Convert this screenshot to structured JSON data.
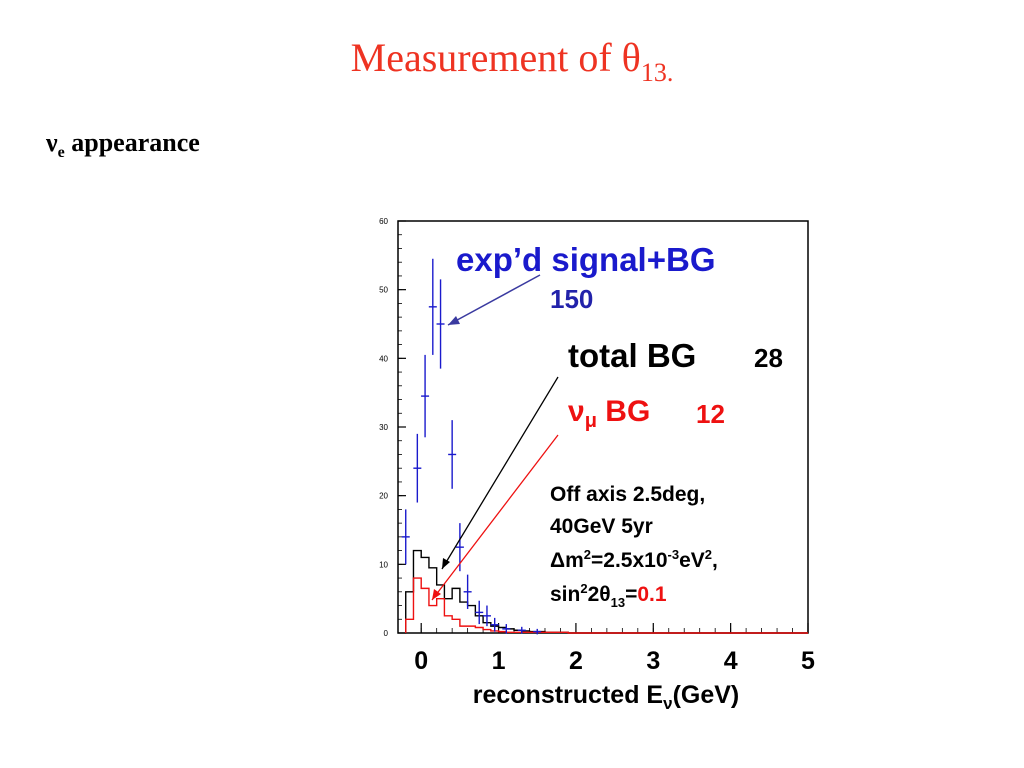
{
  "slide": {
    "title_main": "Measurement of θ",
    "title_sub": "13.",
    "subtitle_symbol": "ν",
    "subtitle_sub": "e",
    "subtitle_rest": " appearance"
  },
  "colors": {
    "title": "#ee3322",
    "signal": "#1a1acc",
    "total_bg": "#000000",
    "numu_bg": "#ee1111",
    "annotation_blue": "#2222aa"
  },
  "chart_data": {
    "type": "histogram",
    "xlabel": "reconstructed E",
    "xlabel_sub": "ν",
    "xlabel_tail": "(GeV)",
    "xlim": [
      -0.3,
      5
    ],
    "ylim": [
      0,
      60
    ],
    "xticks": [
      0,
      1,
      2,
      3,
      4,
      5
    ],
    "yticks": [
      0,
      10,
      20,
      30,
      40,
      50,
      60
    ],
    "signal_plus_bg": {
      "label": "exp’d signal+BG",
      "count": "150",
      "points": [
        {
          "x": -0.2,
          "y": 14,
          "err": 4
        },
        {
          "x": -0.05,
          "y": 24,
          "err": 5
        },
        {
          "x": 0.05,
          "y": 34.5,
          "err": 6
        },
        {
          "x": 0.15,
          "y": 47.5,
          "err": 7
        },
        {
          "x": 0.25,
          "y": 45,
          "err": 6.5
        },
        {
          "x": 0.4,
          "y": 26,
          "err": 5
        },
        {
          "x": 0.5,
          "y": 12.5,
          "err": 3.5
        },
        {
          "x": 0.6,
          "y": 6,
          "err": 2.5
        },
        {
          "x": 0.75,
          "y": 3,
          "err": 1.7
        },
        {
          "x": 0.85,
          "y": 2.5,
          "err": 1.5
        },
        {
          "x": 0.95,
          "y": 1.2,
          "err": 1
        },
        {
          "x": 1.1,
          "y": 0.6,
          "err": 0.7
        },
        {
          "x": 1.3,
          "y": 0.4,
          "err": 0.5
        },
        {
          "x": 1.5,
          "y": 0.2,
          "err": 0.4
        }
      ]
    },
    "total_bg": {
      "label": "total BG",
      "count": "28",
      "bin_width": 0.1,
      "bin_start": -0.2,
      "values": [
        6,
        12,
        11,
        9.5,
        7,
        5,
        6.5,
        4.5,
        4,
        2.5,
        1.5,
        1,
        0.8,
        0.6,
        0.4,
        0.3,
        0.2,
        0.2,
        0.1,
        0.1,
        0.1
      ]
    },
    "numu_bg": {
      "label_symbol": "ν",
      "label_sub": "μ",
      "label_rest": " BG",
      "count": "12",
      "bin_width": 0.1,
      "bin_start": -0.2,
      "values": [
        2,
        8,
        6.5,
        4,
        5,
        2.5,
        2,
        1,
        1,
        0.8,
        0.5,
        0.3,
        0.2,
        0.1,
        0.1,
        0.1,
        0.1,
        0.1,
        0.1,
        0.1,
        0.1
      ]
    },
    "annotation": {
      "line1": "Off axis 2.5deg,",
      "line2": "40GeV 5yr",
      "line3_a": "Δm",
      "line3_sup1": "2",
      "line3_b": "=2.5x10",
      "line3_sup2": "-3",
      "line3_c": "eV",
      "line3_sup3": "2",
      "line3_d": ",",
      "line4_a": "sin",
      "line4_sup": "2",
      "line4_b": "2θ",
      "line4_sub": "13",
      "line4_eq": "=",
      "line4_val": "0.1"
    }
  }
}
